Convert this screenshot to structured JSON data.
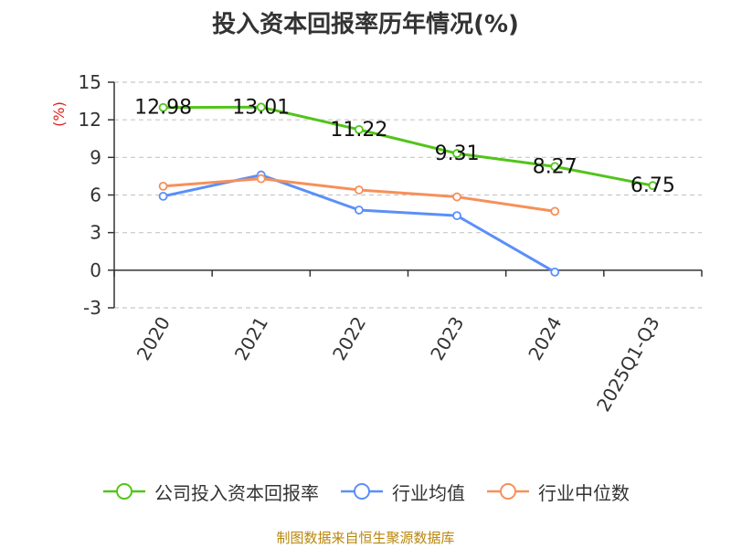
{
  "title": "投入资本回报率历年情况(%)",
  "source": "制图数据来自恒生聚源数据库",
  "chart_data": {
    "type": "line",
    "title": "投入资本回报率历年情况(%)",
    "ylabel": "(%)",
    "xlabel": "",
    "categories": [
      "2020",
      "2021",
      "2022",
      "2023",
      "2024",
      "2025Q1-Q3"
    ],
    "ylim": [
      -3,
      15
    ],
    "yticks": [
      -3,
      0,
      3,
      6,
      9,
      12,
      15
    ],
    "grid": true,
    "legend_position": "bottom",
    "series": [
      {
        "name": "公司投入资本回报率",
        "color": "#52c41a",
        "values": [
          12.98,
          13.01,
          11.22,
          9.31,
          8.27,
          6.75
        ],
        "show_labels": true
      },
      {
        "name": "行业均值",
        "color": "#5b8ff9",
        "values": [
          5.9,
          7.6,
          4.8,
          4.35,
          -0.15,
          null
        ],
        "show_labels": false
      },
      {
        "name": "行业中位数",
        "color": "#f6905a",
        "values": [
          6.7,
          7.3,
          6.4,
          5.85,
          4.7,
          null
        ],
        "show_labels": false
      }
    ]
  }
}
